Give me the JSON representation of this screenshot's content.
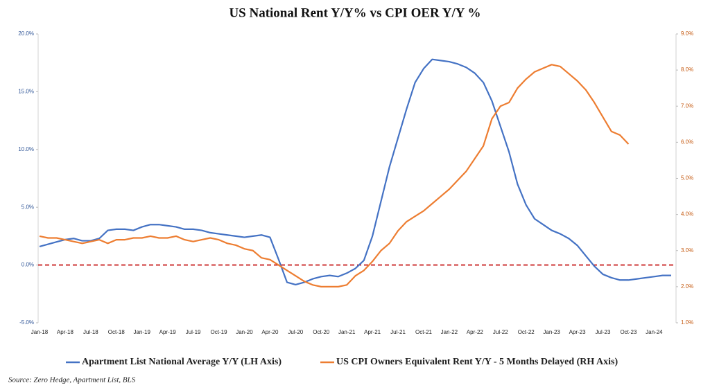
{
  "chart_data": {
    "type": "line",
    "title": "US National Rent Y/Y%  vs CPI OER Y/Y %",
    "source": "Source: Zero Hedge, Apartment List, BLS",
    "categories": [
      "Jan-18",
      null,
      null,
      "Apr-18",
      null,
      null,
      "Jul-18",
      null,
      null,
      "Oct-18",
      null,
      null,
      "Jan-19",
      null,
      null,
      "Apr-19",
      null,
      null,
      "Jul-19",
      null,
      null,
      "Oct-19",
      null,
      null,
      "Jan-20",
      null,
      null,
      "Apr-20",
      null,
      null,
      "Jul-20",
      null,
      null,
      "Oct-20",
      null,
      null,
      "Jan-21",
      null,
      null,
      "Apr-21",
      null,
      null,
      "Jul-21",
      null,
      null,
      "Oct-21",
      null,
      null,
      "Jan-22",
      null,
      null,
      "Apr-22",
      null,
      null,
      "Jul-22",
      null,
      null,
      "Oct-22",
      null,
      null,
      "Jan-23",
      null,
      null,
      "Apr-23",
      null,
      null,
      "Jul-23",
      null,
      null,
      "Oct-23",
      null,
      null,
      "Jan-24",
      null,
      null
    ],
    "series": [
      {
        "name": "Apartment List  National Average Y/Y (LH Axis)",
        "color": "#4472c4",
        "axis": "y",
        "values": [
          1.6,
          1.8,
          2.0,
          2.2,
          2.3,
          2.1,
          2.1,
          2.3,
          3.0,
          3.1,
          3.1,
          3.0,
          3.3,
          3.5,
          3.5,
          3.4,
          3.3,
          3.1,
          3.1,
          3.0,
          2.8,
          2.7,
          2.6,
          2.5,
          2.4,
          2.5,
          2.6,
          2.4,
          0.5,
          -1.5,
          -1.7,
          -1.5,
          -1.2,
          -1.0,
          -0.9,
          -1.0,
          -0.7,
          -0.3,
          0.4,
          2.5,
          5.5,
          8.5,
          11.0,
          13.5,
          15.8,
          17.0,
          17.8,
          17.7,
          17.6,
          17.4,
          17.1,
          16.6,
          15.8,
          14.2,
          12.0,
          9.8,
          7.0,
          5.2,
          4.0,
          3.5,
          3.0,
          2.7,
          2.3,
          1.7,
          0.8,
          -0.1,
          -0.8,
          -1.1,
          -1.3,
          -1.3,
          -1.2,
          -1.1,
          -1.0,
          -0.9,
          -0.9
        ]
      },
      {
        "name": "US CPI Owners Equivalent Rent Y/Y - 5 Months Delayed (RH Axis)",
        "color": "#ed7d31",
        "axis": "y2",
        "values": [
          3.4,
          3.35,
          3.35,
          3.3,
          3.25,
          3.2,
          3.25,
          3.3,
          3.2,
          3.3,
          3.3,
          3.35,
          3.35,
          3.4,
          3.35,
          3.35,
          3.4,
          3.3,
          3.25,
          3.3,
          3.35,
          3.3,
          3.2,
          3.15,
          3.05,
          3.0,
          2.8,
          2.75,
          2.6,
          2.45,
          2.3,
          2.15,
          2.05,
          2.0,
          2.0,
          2.0,
          2.05,
          2.3,
          2.45,
          2.7,
          3.0,
          3.2,
          3.55,
          3.8,
          3.95,
          4.1,
          4.3,
          4.5,
          4.7,
          4.95,
          5.2,
          5.55,
          5.9,
          6.65,
          7.0,
          7.1,
          7.5,
          7.75,
          7.95,
          8.05,
          8.15,
          8.1,
          7.9,
          7.7,
          7.45,
          7.1,
          6.7,
          6.3,
          6.2,
          5.95,
          null,
          null,
          null,
          null,
          null
        ]
      }
    ],
    "ylim": [
      -5,
      20
    ],
    "yticks": [
      {
        "value": -5,
        "label": "-5.0%"
      },
      {
        "value": 0,
        "label": "0.0%"
      },
      {
        "value": 5,
        "label": "5.0%"
      },
      {
        "value": 10,
        "label": "10.0%"
      },
      {
        "value": 15,
        "label": "15.0%"
      },
      {
        "value": 20,
        "label": "20.0%"
      }
    ],
    "y2lim": [
      1,
      9
    ],
    "y2ticks": [
      {
        "value": 1,
        "label": "1.0%"
      },
      {
        "value": 2,
        "label": "2.0%"
      },
      {
        "value": 3,
        "label": "3.0%"
      },
      {
        "value": 4,
        "label": "4.0%"
      },
      {
        "value": 5,
        "label": "5.0%"
      },
      {
        "value": 6,
        "label": "6.0%"
      },
      {
        "value": 7,
        "label": "7.0%"
      },
      {
        "value": 8,
        "label": "8.0%"
      },
      {
        "value": 9,
        "label": "9.0%"
      }
    ],
    "reference_line": {
      "value": 0,
      "color": "#c00000"
    },
    "legend": "bottom"
  }
}
